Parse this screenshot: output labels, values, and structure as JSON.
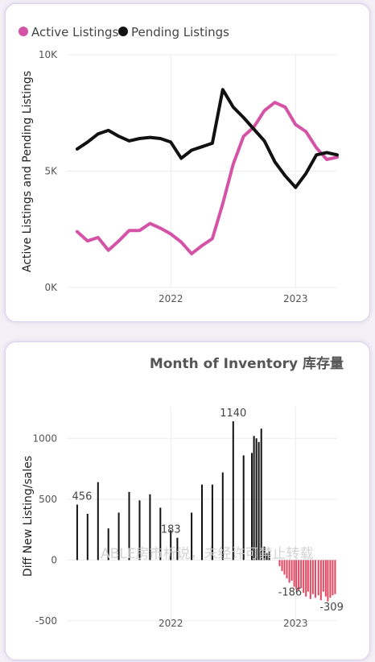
{
  "chart_data": [
    {
      "type": "line",
      "ylabel": "Active Listings and Pending Listings",
      "yticks": [
        "0K",
        "5K",
        "10K"
      ],
      "ylim": [
        0,
        10000
      ],
      "xlim": [
        "2021-03",
        "2023-05"
      ],
      "xticks": [
        {
          "label": "2022",
          "x": "2022-01"
        },
        {
          "label": "2023",
          "x": "2023-01"
        }
      ],
      "legend": "top-left",
      "grid": true,
      "series": [
        {
          "name": "Active Listings",
          "color": "#d453a6",
          "points": [
            [
              "2021-04",
              2400
            ],
            [
              "2021-05",
              2000
            ],
            [
              "2021-06",
              2150
            ],
            [
              "2021-07",
              1600
            ],
            [
              "2021-08",
              2000
            ],
            [
              "2021-09",
              2450
            ],
            [
              "2021-10",
              2450
            ],
            [
              "2021-11",
              2750
            ],
            [
              "2021-12",
              2550
            ],
            [
              "2022-01",
              2300
            ],
            [
              "2022-02",
              1950
            ],
            [
              "2022-03",
              1450
            ],
            [
              "2022-04",
              1800
            ],
            [
              "2022-05",
              2100
            ],
            [
              "2022-06",
              3600
            ],
            [
              "2022-07",
              5300
            ],
            [
              "2022-08",
              6500
            ],
            [
              "2022-09",
              6900
            ],
            [
              "2022-10",
              7600
            ],
            [
              "2022-11",
              7950
            ],
            [
              "2022-12",
              7750
            ],
            [
              "2023-01",
              7000
            ],
            [
              "2023-02",
              6700
            ],
            [
              "2023-03",
              6000
            ],
            [
              "2023-04",
              5500
            ],
            [
              "2023-05",
              5600
            ]
          ]
        },
        {
          "name": "Pending Listings",
          "color": "#111111",
          "points": [
            [
              "2021-04",
              5950
            ],
            [
              "2021-05",
              6250
            ],
            [
              "2021-06",
              6600
            ],
            [
              "2021-07",
              6750
            ],
            [
              "2021-08",
              6500
            ],
            [
              "2021-09",
              6300
            ],
            [
              "2021-10",
              6400
            ],
            [
              "2021-11",
              6450
            ],
            [
              "2021-12",
              6400
            ],
            [
              "2022-01",
              6250
            ],
            [
              "2022-02",
              5550
            ],
            [
              "2022-03",
              5900
            ],
            [
              "2022-04",
              6050
            ],
            [
              "2022-05",
              6200
            ],
            [
              "2022-06",
              8500
            ],
            [
              "2022-07",
              7750
            ],
            [
              "2022-08",
              7300
            ],
            [
              "2022-09",
              6800
            ],
            [
              "2022-10",
              6300
            ],
            [
              "2022-11",
              5400
            ],
            [
              "2022-12",
              4800
            ],
            [
              "2023-01",
              4300
            ],
            [
              "2023-02",
              4900
            ],
            [
              "2023-03",
              5700
            ],
            [
              "2023-04",
              5800
            ],
            [
              "2023-05",
              5700
            ]
          ]
        }
      ]
    },
    {
      "type": "bar",
      "title": "Month of Inventory 库存量",
      "ylabel": "Diff New Listing/sales",
      "yticks": [
        "-500",
        "0",
        "500",
        "1000"
      ],
      "ylim": [
        -560,
        1260
      ],
      "xlim": [
        "2021-03",
        "2023-05"
      ],
      "xticks": [
        {
          "label": "2022",
          "x": "2022-01"
        },
        {
          "label": "2023",
          "x": "2023-01"
        }
      ],
      "grid": true,
      "positive_color": "#111111",
      "negative_color": "#e0445f",
      "data_labels": [
        {
          "text": "456",
          "x": "2021-04-15",
          "value": 456
        },
        {
          "text": "183",
          "x": "2022-01-01",
          "value": 183
        },
        {
          "text": "1140",
          "x": "2022-07-01",
          "value": 1140
        },
        {
          "text": "-186",
          "x": "2022-12-15",
          "value": -186
        },
        {
          "text": "-309",
          "x": "2023-04-15",
          "value": -309
        }
      ],
      "bars": [
        [
          "2021-04-01",
          456
        ],
        [
          "2021-05-01",
          380
        ],
        [
          "2021-06-01",
          640
        ],
        [
          "2021-07-01",
          260
        ],
        [
          "2021-08-01",
          390
        ],
        [
          "2021-09-01",
          560
        ],
        [
          "2021-10-01",
          490
        ],
        [
          "2021-11-01",
          540
        ],
        [
          "2021-12-01",
          430
        ],
        [
          "2022-01-01",
          245
        ],
        [
          "2022-01-20",
          183
        ],
        [
          "2022-03-01",
          390
        ],
        [
          "2022-04-01",
          620
        ],
        [
          "2022-05-01",
          620
        ],
        [
          "2022-06-01",
          720
        ],
        [
          "2022-07-01",
          1140
        ],
        [
          "2022-08-01",
          860
        ],
        [
          "2022-08-25",
          880
        ],
        [
          "2022-09-01",
          1020
        ],
        [
          "2022-09-08",
          1000
        ],
        [
          "2022-09-15",
          970
        ],
        [
          "2022-09-22",
          1080
        ],
        [
          "2022-10-01",
          110
        ],
        [
          "2022-10-08",
          60
        ],
        [
          "2022-10-15",
          70
        ],
        [
          "2022-11-15",
          -50
        ],
        [
          "2022-11-22",
          -90
        ],
        [
          "2022-11-29",
          -120
        ],
        [
          "2022-12-06",
          -150
        ],
        [
          "2022-12-13",
          -186
        ],
        [
          "2022-12-20",
          -170
        ],
        [
          "2022-12-27",
          -220
        ],
        [
          "2023-01-03",
          -240
        ],
        [
          "2023-01-10",
          -250
        ],
        [
          "2023-01-17",
          -230
        ],
        [
          "2023-01-24",
          -270
        ],
        [
          "2023-01-31",
          -300
        ],
        [
          "2023-02-07",
          -260
        ],
        [
          "2023-02-14",
          -320
        ],
        [
          "2023-02-21",
          -280
        ],
        [
          "2023-02-28",
          -310
        ],
        [
          "2023-03-07",
          -290
        ],
        [
          "2023-03-14",
          -330
        ],
        [
          "2023-03-21",
          -260
        ],
        [
          "2023-03-28",
          -300
        ],
        [
          "2023-04-04",
          -340
        ],
        [
          "2023-04-11",
          -309
        ],
        [
          "2023-04-18",
          -290
        ],
        [
          "2023-04-25",
          -280
        ]
      ]
    }
  ],
  "watermark": "ABLE房市析说，未经许可禁止转载"
}
